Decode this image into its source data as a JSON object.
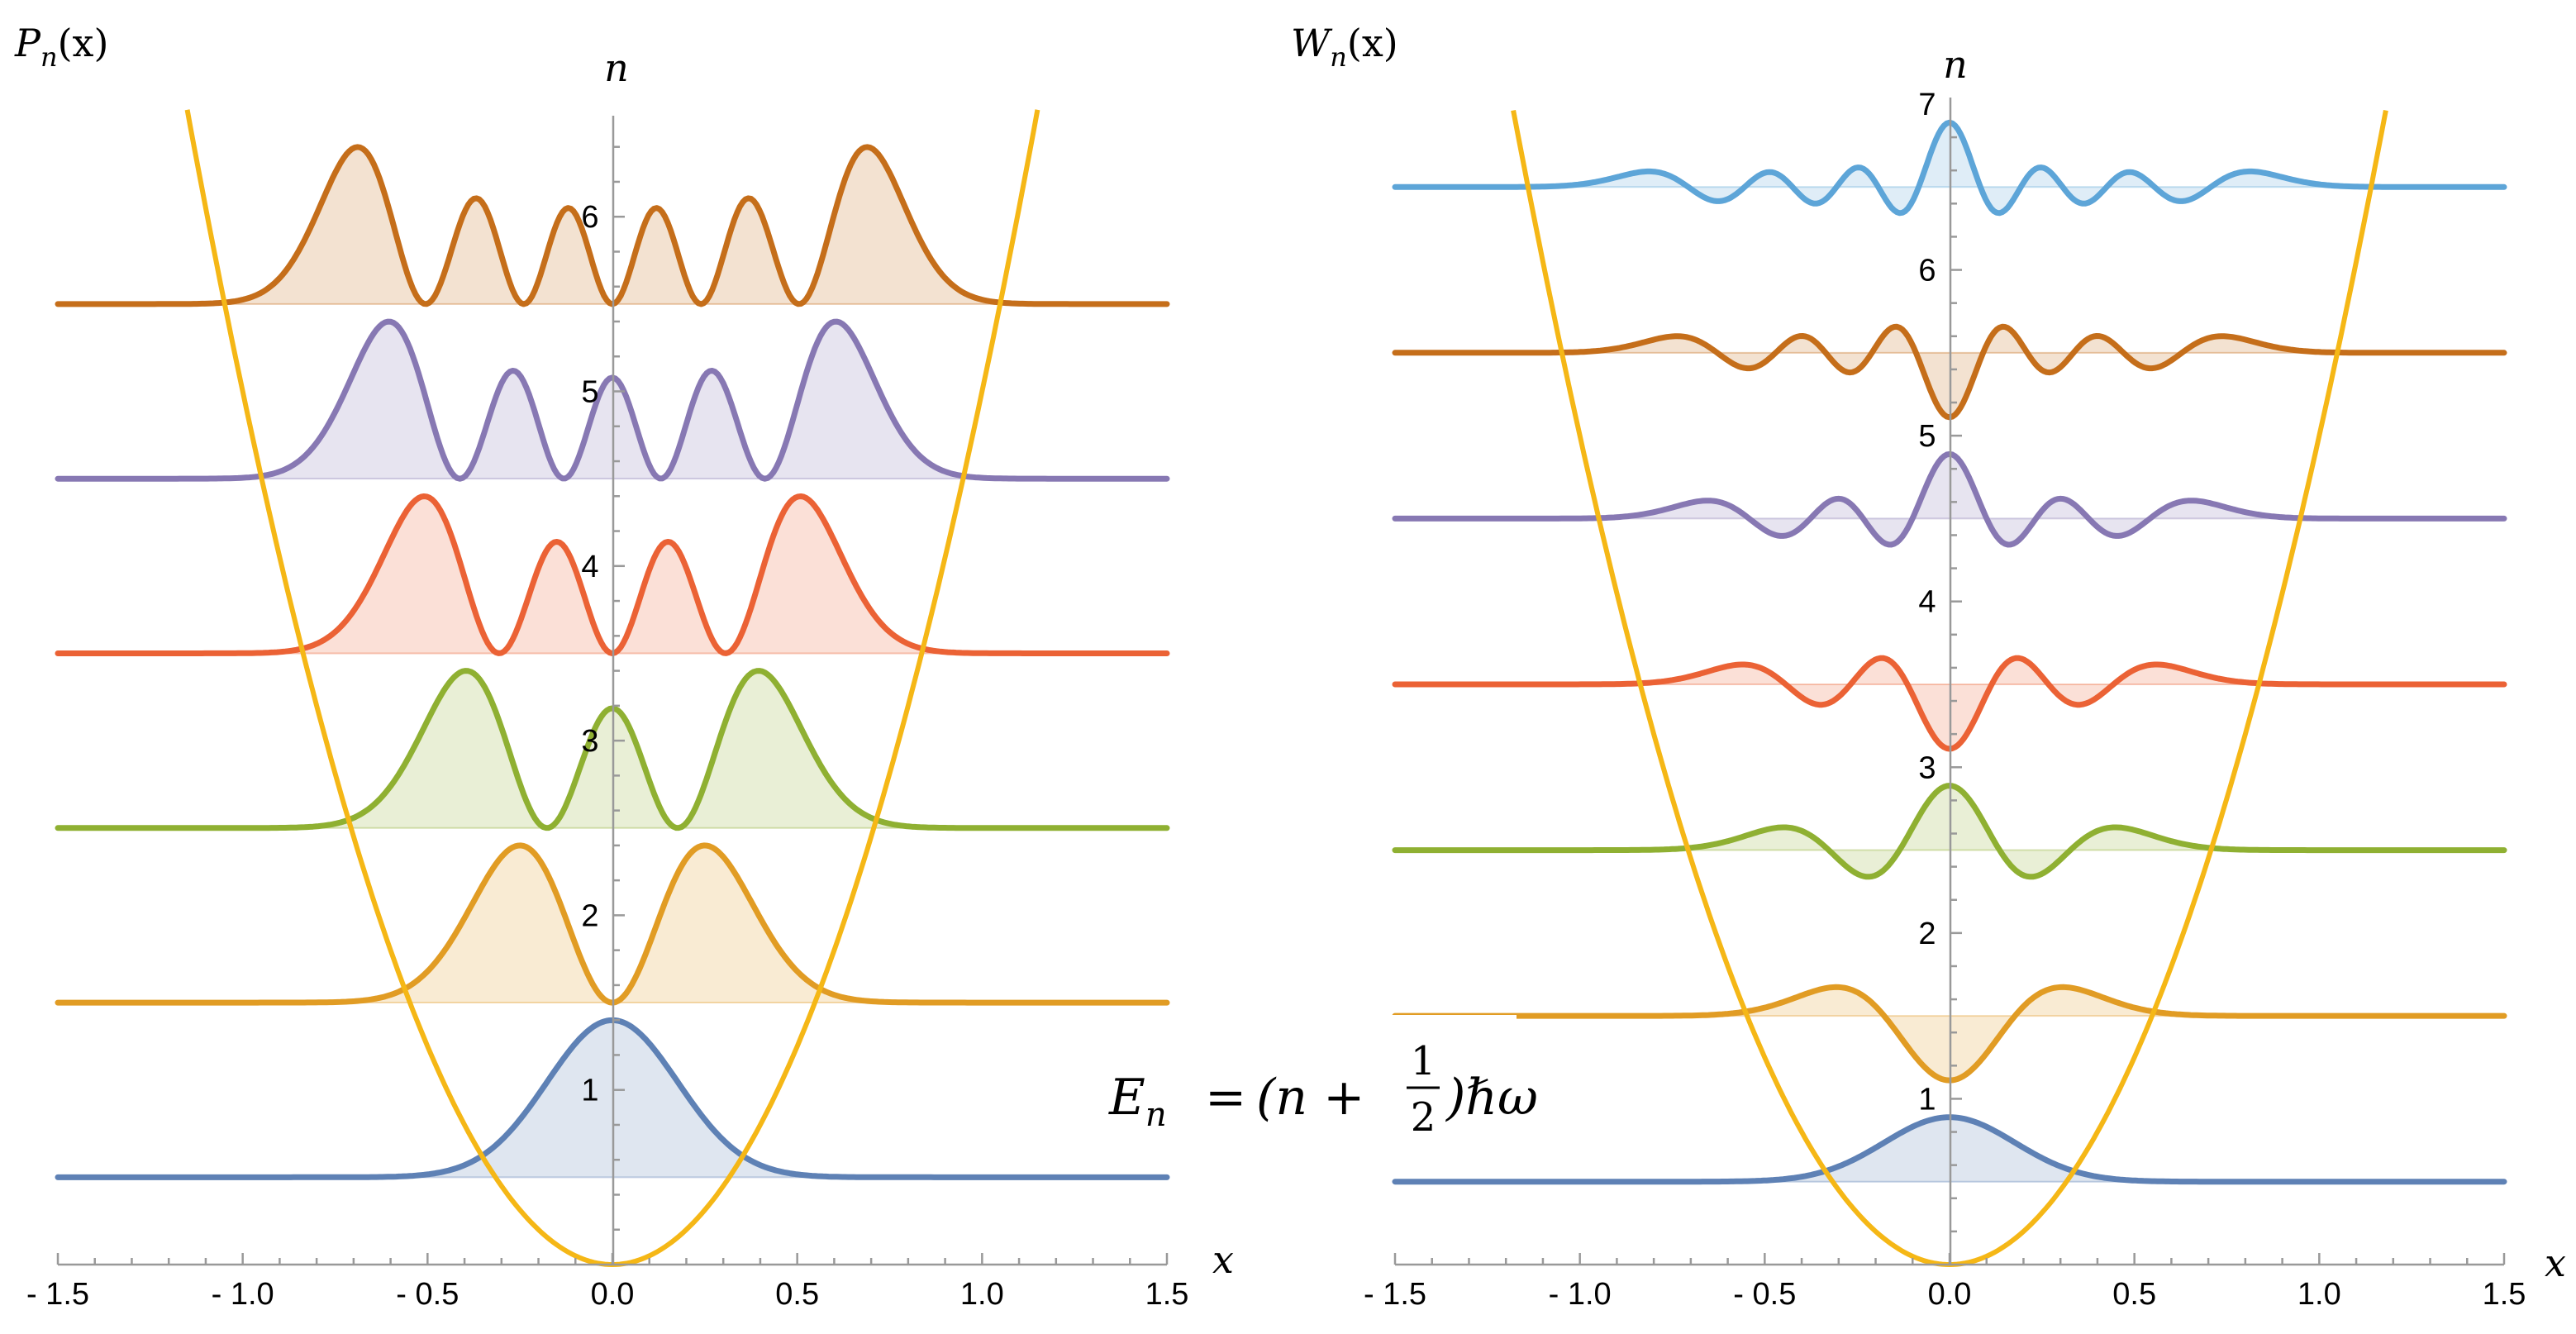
{
  "formula": {
    "lhs": "E",
    "lhs_sub": "n",
    "equals": "=",
    "open": "(n +",
    "frac_num": "1",
    "frac_den": "2",
    "close": ")ℏω"
  },
  "chart_data": [
    {
      "type": "line",
      "title": "P_n(x)",
      "title_main": "P",
      "title_sub": "n",
      "title_arg": "(x)",
      "xlabel": "x",
      "ylabel": "n",
      "xlim": [
        -1.5,
        1.5
      ],
      "ylim": [
        0,
        6.55
      ],
      "x_ticks": [
        -1.5,
        -1.0,
        -0.5,
        0.0,
        0.5,
        1.0,
        1.5
      ],
      "x_tick_labels": [
        "- 1.5",
        "- 1.0",
        "- 0.5",
        "0.0",
        "0.5",
        "1.0",
        "1.5"
      ],
      "y_ticks": [
        1,
        2,
        3,
        4,
        5,
        6
      ],
      "y_tick_labels": [
        "1",
        "2",
        "3",
        "4",
        "5",
        "6"
      ],
      "potential": {
        "description": "V(x) parabola",
        "coefficient": 5.0,
        "color": "#F5B716"
      },
      "quantity": "probability",
      "series": [
        {
          "name": "n=0",
          "n": 0,
          "baseline": 0.5,
          "color": "#5E81B5"
        },
        {
          "name": "n=1",
          "n": 1,
          "baseline": 1.5,
          "color": "#E19C24"
        },
        {
          "name": "n=2",
          "n": 2,
          "baseline": 2.5,
          "color": "#8FB032"
        },
        {
          "name": "n=3",
          "n": 3,
          "baseline": 3.5,
          "color": "#EB6235"
        },
        {
          "name": "n=4",
          "n": 4,
          "baseline": 4.5,
          "color": "#8778B3"
        },
        {
          "name": "n=5",
          "n": 5,
          "baseline": 5.5,
          "color": "#C56E1A"
        }
      ]
    },
    {
      "type": "line",
      "title": "W_n(x)",
      "title_main": "W",
      "title_sub": "n",
      "title_arg": "(x)",
      "xlabel": "x",
      "ylabel": "n",
      "xlim": [
        -1.5,
        1.5
      ],
      "ylim": [
        0,
        6.95
      ],
      "x_ticks": [
        -1.5,
        -1.0,
        -0.5,
        0.0,
        0.5,
        1.0,
        1.5
      ],
      "x_tick_labels": [
        "- 1.5",
        "- 1.0",
        "- 0.5",
        "0.0",
        "0.5",
        "1.0",
        "1.5"
      ],
      "y_ticks": [
        1,
        2,
        3,
        4,
        5,
        6,
        7
      ],
      "y_tick_labels": [
        "1",
        "2",
        "3",
        "4",
        "5",
        "6",
        "7"
      ],
      "potential": {
        "description": "V(x) parabola",
        "coefficient": 5.0,
        "color": "#F5B716"
      },
      "quantity": "wigner",
      "series": [
        {
          "name": "n=0",
          "n": 0,
          "baseline": 0.5,
          "color": "#5E81B5"
        },
        {
          "name": "n=1",
          "n": 1,
          "baseline": 1.5,
          "color": "#E19C24"
        },
        {
          "name": "n=2",
          "n": 2,
          "baseline": 2.5,
          "color": "#8FB032"
        },
        {
          "name": "n=3",
          "n": 3,
          "baseline": 3.5,
          "color": "#EB6235"
        },
        {
          "name": "n=4",
          "n": 4,
          "baseline": 4.5,
          "color": "#8778B3"
        },
        {
          "name": "n=5",
          "n": 5,
          "baseline": 5.5,
          "color": "#C56E1A"
        },
        {
          "name": "n=6",
          "n": 6,
          "baseline": 6.5,
          "color": "#5DA5D8"
        }
      ]
    }
  ]
}
